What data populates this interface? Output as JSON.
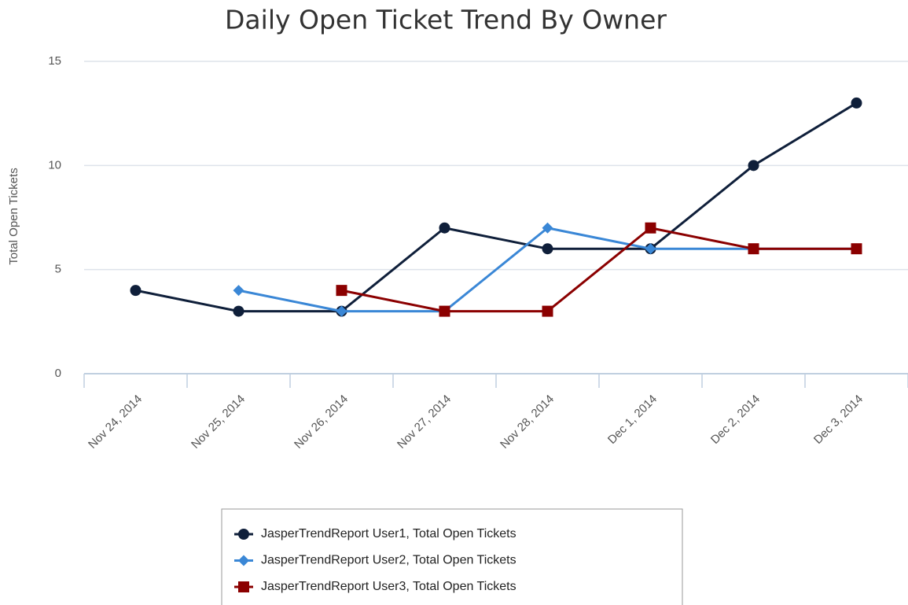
{
  "chart_data": {
    "type": "line",
    "title": "Daily Open Ticket Trend By Owner",
    "y_label": "Total Open Tickets",
    "categories": [
      "Nov 24, 2014",
      "Nov 25, 2014",
      "Nov 26, 2014",
      "Nov 27, 2014",
      "Nov 28, 2014",
      "Dec 1, 2014",
      "Dec 2, 2014",
      "Dec 3, 2014"
    ],
    "series": [
      {
        "name": "JasperTrendReport User1, Total Open Tickets",
        "color": "#0f1f3a",
        "marker": "circle",
        "values": [
          4,
          3,
          3,
          7,
          6,
          6,
          10,
          13
        ]
      },
      {
        "name": "JasperTrendReport User2, Total Open Tickets",
        "color": "#3a87d6",
        "marker": "diamond",
        "values": [
          null,
          4,
          3,
          3,
          7,
          6,
          6,
          6
        ]
      },
      {
        "name": "JasperTrendReport User3, Total Open Tickets",
        "color": "#8b0000",
        "marker": "square",
        "values": [
          null,
          null,
          4,
          3,
          3,
          7,
          6,
          6
        ]
      }
    ],
    "ylim": [
      0,
      15
    ],
    "yticks": [
      0,
      5,
      10,
      15
    ],
    "grid": true,
    "legend": "bottom"
  }
}
